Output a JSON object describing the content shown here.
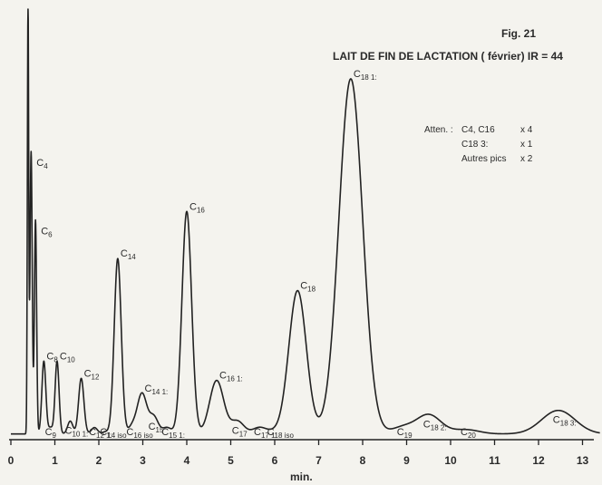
{
  "figure": {
    "number": "Fig. 21",
    "title": "LAIT DE FIN DE LACTATION ( février) IR = 44"
  },
  "attenuation": {
    "title": "Atten. :",
    "rows": [
      {
        "label": "C4, C16",
        "factor": "x 4"
      },
      {
        "label": "C18 3:",
        "factor": "x 1"
      },
      {
        "label": "Autres pics",
        "factor": "x 2"
      }
    ]
  },
  "chart_data": {
    "type": "line",
    "title": "LAIT DE FIN DE LACTATION ( février) IR = 44",
    "xlabel": "min.",
    "ylabel": "",
    "xlim": [
      0,
      13.4
    ],
    "ylim": [
      0,
      100
    ],
    "x_ticks": [
      0,
      1,
      2,
      3,
      4,
      5,
      6,
      7,
      8,
      9,
      10,
      11,
      12,
      13
    ],
    "grid": false,
    "legend": "none",
    "baseline": 0.7,
    "peaks": [
      {
        "x": 0.39,
        "h": 100,
        "w": 0.015,
        "label": "",
        "type": "solvent"
      },
      {
        "x": 0.46,
        "h": 66,
        "w": 0.025,
        "label": "C4"
      },
      {
        "x": 0.56,
        "h": 50,
        "w": 0.025,
        "label": "C6"
      },
      {
        "x": 0.75,
        "h": 17,
        "w": 0.045,
        "label": "C8"
      },
      {
        "x": 0.9,
        "h": 1.5,
        "w": 0.05,
        "label": "C9"
      },
      {
        "x": 1.05,
        "h": 17,
        "w": 0.045,
        "label": "C10"
      },
      {
        "x": 1.35,
        "h": 3,
        "w": 0.06,
        "label": "C10 1:"
      },
      {
        "x": 1.6,
        "h": 13,
        "w": 0.06,
        "label": "C12"
      },
      {
        "x": 1.9,
        "h": 1.5,
        "w": 0.07,
        "label": "C12 1:"
      },
      {
        "x": 2.15,
        "h": 0.5,
        "w": 0.07,
        "label": "C14 iso"
      },
      {
        "x": 2.43,
        "h": 41,
        "w": 0.08,
        "label": "C14"
      },
      {
        "x": 2.75,
        "h": 1.5,
        "w": 0.08,
        "label": "C16 iso"
      },
      {
        "x": 2.98,
        "h": 9.5,
        "w": 0.11,
        "label": "C14 1:"
      },
      {
        "x": 3.25,
        "h": 4,
        "w": 0.1,
        "label": "C15"
      },
      {
        "x": 3.55,
        "h": 1.5,
        "w": 0.1,
        "label": "C15 1:"
      },
      {
        "x": 4.0,
        "h": 52,
        "w": 0.11,
        "label": "C16"
      },
      {
        "x": 4.68,
        "h": 12.5,
        "w": 0.16,
        "label": "C16 1:"
      },
      {
        "x": 5.15,
        "h": 3,
        "w": 0.15,
        "label": "C17"
      },
      {
        "x": 5.65,
        "h": 1.5,
        "w": 0.15,
        "label": "C17 1:"
      },
      {
        "x": 5.95,
        "h": 0.5,
        "w": 0.15,
        "label": "C18 iso"
      },
      {
        "x": 6.52,
        "h": 33.5,
        "w": 0.2,
        "label": "C18"
      },
      {
        "x": 7.73,
        "h": 83,
        "w": 0.27,
        "label": "C18 1:"
      },
      {
        "x": 8.9,
        "h": 1.5,
        "w": 0.25,
        "label": "C19"
      },
      {
        "x": 9.5,
        "h": 4.5,
        "w": 0.28,
        "label": "C18 2:"
      },
      {
        "x": 10.35,
        "h": 1.0,
        "w": 0.3,
        "label": "C20"
      },
      {
        "x": 12.45,
        "h": 5.5,
        "w": 0.38,
        "label": "C18 3:"
      }
    ]
  }
}
